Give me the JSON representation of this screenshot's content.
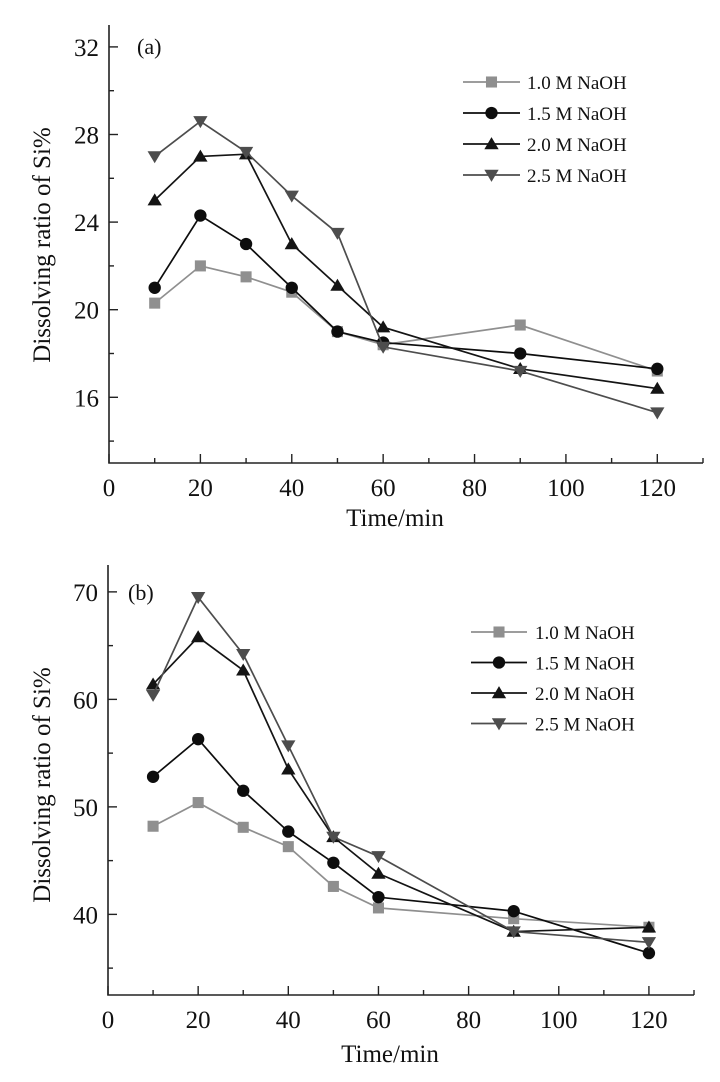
{
  "chart_data": [
    {
      "type": "line",
      "panel_label": "(a)",
      "xlabel": "Time/min",
      "ylabel": "Dissolving ratio of Si%",
      "xlim": [
        0,
        130
      ],
      "ylim": [
        13,
        33
      ],
      "xticks": [
        0,
        20,
        40,
        60,
        80,
        100,
        120
      ],
      "xminor": [
        10,
        30,
        50,
        70,
        90,
        110,
        130
      ],
      "yticks": [
        16,
        20,
        24,
        28,
        32
      ],
      "yminor": [
        14,
        18,
        22,
        26,
        30
      ],
      "grid": false,
      "legend_position": "top-right",
      "x": [
        10,
        20,
        30,
        40,
        50,
        60,
        90,
        120
      ],
      "series": [
        {
          "name": "1.0 M NaOH",
          "marker": "square",
          "color": "#8f8f8f",
          "values": [
            20.3,
            22.0,
            21.5,
            20.8,
            19.0,
            18.4,
            19.3,
            17.2
          ]
        },
        {
          "name": "1.5 M NaOH",
          "marker": "circle",
          "color": "#0d0d0d",
          "values": [
            21.0,
            24.3,
            23.0,
            21.0,
            19.0,
            18.5,
            18.0,
            17.3
          ]
        },
        {
          "name": "2.0 M NaOH",
          "marker": "triangle-up",
          "color": "#141414",
          "values": [
            25.0,
            27.0,
            27.1,
            23.0,
            21.1,
            19.2,
            17.3,
            16.4
          ]
        },
        {
          "name": "2.5 M NaOH",
          "marker": "triangle-down",
          "color": "#4d4d4d",
          "values": [
            27.0,
            28.6,
            27.2,
            25.2,
            23.5,
            18.3,
            17.2,
            15.3
          ]
        }
      ]
    },
    {
      "type": "line",
      "panel_label": "(b)",
      "xlabel": "Time/min",
      "ylabel": "Dissolving ratio of Si%",
      "xlim": [
        0,
        130
      ],
      "ylim": [
        32.5,
        72.5
      ],
      "xticks": [
        0,
        20,
        40,
        60,
        80,
        100,
        120
      ],
      "xminor": [
        10,
        30,
        50,
        70,
        90,
        110,
        130
      ],
      "yticks": [
        40,
        50,
        60,
        70
      ],
      "yminor": [
        35,
        45,
        55,
        65
      ],
      "grid": false,
      "legend_position": "top-right",
      "x": [
        10,
        20,
        30,
        40,
        50,
        60,
        90,
        120
      ],
      "series": [
        {
          "name": "1.0 M NaOH",
          "marker": "square",
          "color": "#8f8f8f",
          "values": [
            48.2,
            50.4,
            48.1,
            46.3,
            42.6,
            40.6,
            39.6,
            38.8
          ]
        },
        {
          "name": "1.5 M NaOH",
          "marker": "circle",
          "color": "#0d0d0d",
          "values": [
            52.8,
            56.3,
            51.5,
            47.7,
            44.8,
            41.6,
            40.3,
            36.4
          ]
        },
        {
          "name": "2.0 M NaOH",
          "marker": "triangle-up",
          "color": "#141414",
          "values": [
            61.4,
            65.8,
            62.7,
            53.5,
            47.2,
            43.8,
            38.4,
            38.8
          ]
        },
        {
          "name": "2.5 M NaOH",
          "marker": "triangle-down",
          "color": "#4d4d4d",
          "values": [
            60.4,
            69.5,
            64.2,
            55.7,
            47.2,
            45.4,
            38.4,
            37.4
          ]
        }
      ]
    }
  ]
}
